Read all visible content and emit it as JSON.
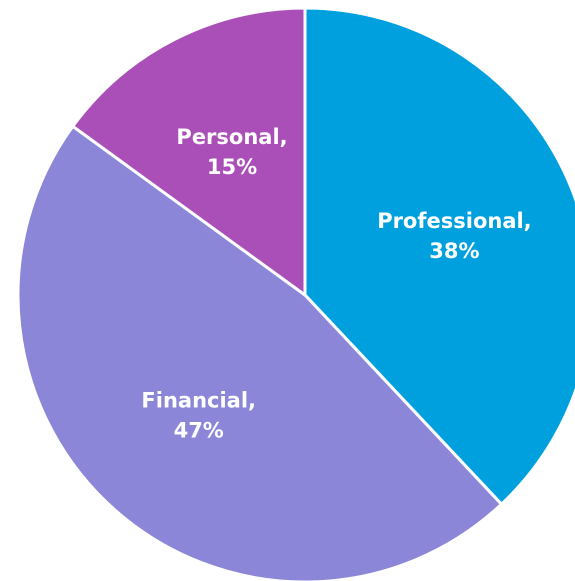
{
  "chart_data": {
    "type": "pie",
    "categories": [
      "Professional,",
      "Financial,",
      "Personal,"
    ],
    "values": [
      38,
      47,
      15
    ],
    "value_labels": [
      "38%",
      "47%",
      "15%"
    ],
    "colors": [
      "#00a0de",
      "#8b86d8",
      "#ab4fb8"
    ]
  }
}
